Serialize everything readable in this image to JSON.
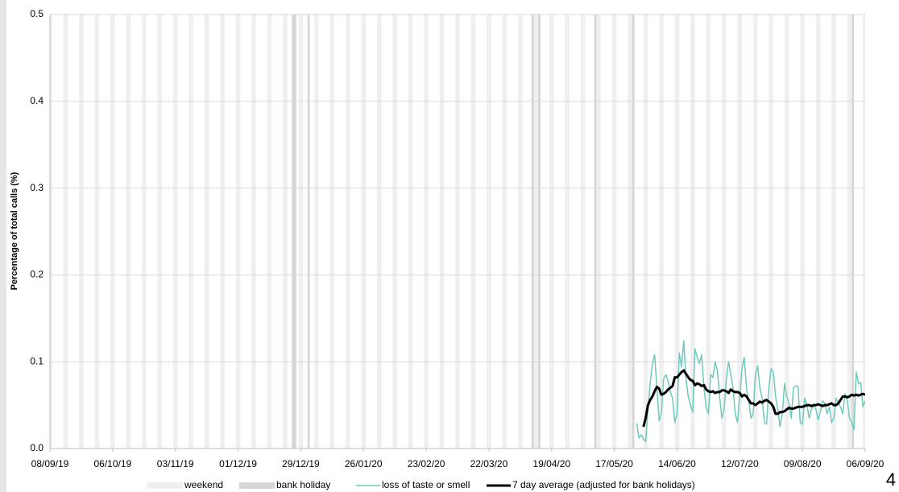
{
  "chart_data": {
    "type": "line",
    "ylabel": "Percentage of total calls (%)",
    "page_number": "4",
    "xlim": [
      "08/09/19",
      "06/09/20"
    ],
    "xticks": [
      "08/09/19",
      "06/10/19",
      "03/11/19",
      "01/12/19",
      "29/12/19",
      "26/01/20",
      "23/02/20",
      "22/03/20",
      "19/04/20",
      "17/05/20",
      "14/06/20",
      "12/07/20",
      "09/08/20",
      "06/09/20"
    ],
    "ylim": [
      0,
      0.5
    ],
    "yticks": [
      {
        "value": 0,
        "label": "0.0"
      },
      0.1,
      0.2,
      0.3,
      0.4,
      0.5
    ],
    "grid": true,
    "bands": [
      {
        "name": "weekend",
        "color": "#efefef",
        "dates": [
          "07/09/19",
          "08/09/19",
          "14/09/19",
          "15/09/19",
          "21/09/19",
          "22/09/19",
          "28/09/19",
          "29/09/19",
          "05/10/19",
          "06/10/19",
          "12/10/19",
          "13/10/19",
          "19/10/19",
          "20/10/19",
          "26/10/19",
          "27/10/19",
          "02/11/19",
          "03/11/19",
          "09/11/19",
          "10/11/19",
          "16/11/19",
          "17/11/19",
          "23/11/19",
          "24/11/19",
          "30/11/19",
          "01/12/19",
          "07/12/19",
          "08/12/19",
          "14/12/19",
          "15/12/19",
          "21/12/19",
          "22/12/19",
          "28/12/19",
          "29/12/19",
          "04/01/20",
          "05/01/20",
          "11/01/20",
          "12/01/20",
          "18/01/20",
          "19/01/20",
          "25/01/20",
          "26/01/20",
          "01/02/20",
          "02/02/20",
          "08/02/20",
          "09/02/20",
          "15/02/20",
          "16/02/20",
          "22/02/20",
          "23/02/20",
          "29/02/20",
          "01/03/20",
          "07/03/20",
          "08/03/20",
          "14/03/20",
          "15/03/20",
          "21/03/20",
          "22/03/20",
          "28/03/20",
          "29/03/20",
          "04/04/20",
          "05/04/20",
          "11/04/20",
          "12/04/20",
          "18/04/20",
          "19/04/20",
          "25/04/20",
          "26/04/20",
          "02/05/20",
          "03/05/20",
          "09/05/20",
          "10/05/20",
          "16/05/20",
          "17/05/20",
          "23/05/20",
          "24/05/20",
          "30/05/20",
          "31/05/20",
          "06/06/20",
          "07/06/20",
          "13/06/20",
          "14/06/20",
          "20/06/20",
          "21/06/20",
          "27/06/20",
          "28/06/20",
          "04/07/20",
          "05/07/20",
          "11/07/20",
          "12/07/20",
          "18/07/20",
          "19/07/20",
          "25/07/20",
          "26/07/20",
          "01/08/20",
          "02/08/20",
          "08/08/20",
          "09/08/20",
          "15/08/20",
          "16/08/20",
          "22/08/20",
          "23/08/20",
          "29/08/20",
          "30/08/20",
          "05/09/20",
          "06/09/20"
        ]
      },
      {
        "name": "bank holiday",
        "color": "#d6d6d6",
        "dates": [
          "25/12/19",
          "26/12/19",
          "01/01/20",
          "10/04/20",
          "13/04/20",
          "08/05/20",
          "25/05/20",
          "31/08/20"
        ]
      }
    ],
    "x": [
      "27/05/20",
      "28/05/20",
      "29/05/20",
      "30/05/20",
      "31/05/20",
      "01/06/20",
      "02/06/20",
      "03/06/20",
      "04/06/20",
      "05/06/20",
      "06/06/20",
      "07/06/20",
      "08/06/20",
      "09/06/20",
      "10/06/20",
      "11/06/20",
      "12/06/20",
      "13/06/20",
      "14/06/20",
      "15/06/20",
      "16/06/20",
      "17/06/20",
      "18/06/20",
      "19/06/20",
      "20/06/20",
      "21/06/20",
      "22/06/20",
      "23/06/20",
      "24/06/20",
      "25/06/20",
      "26/06/20",
      "27/06/20",
      "28/06/20",
      "29/06/20",
      "30/06/20",
      "01/07/20",
      "02/07/20",
      "03/07/20",
      "04/07/20",
      "05/07/20",
      "06/07/20",
      "07/07/20",
      "08/07/20",
      "09/07/20",
      "10/07/20",
      "11/07/20",
      "12/07/20",
      "13/07/20",
      "14/07/20",
      "15/07/20",
      "16/07/20",
      "17/07/20",
      "18/07/20",
      "19/07/20",
      "20/07/20",
      "21/07/20",
      "22/07/20",
      "23/07/20",
      "24/07/20",
      "25/07/20",
      "26/07/20",
      "27/07/20",
      "28/07/20",
      "29/07/20",
      "30/07/20",
      "31/07/20",
      "01/08/20",
      "02/08/20",
      "03/08/20",
      "04/08/20",
      "05/08/20",
      "06/08/20",
      "07/08/20",
      "08/08/20",
      "09/08/20",
      "10/08/20",
      "11/08/20",
      "12/08/20",
      "13/08/20",
      "14/08/20",
      "15/08/20",
      "16/08/20",
      "17/08/20",
      "18/08/20",
      "19/08/20",
      "20/08/20",
      "21/08/20",
      "22/08/20",
      "23/08/20",
      "24/08/20",
      "25/08/20",
      "26/08/20",
      "27/08/20",
      "28/08/20",
      "29/08/20",
      "30/08/20",
      "31/08/20",
      "01/09/20",
      "02/09/20",
      "03/09/20",
      "04/09/20",
      "05/09/20",
      "06/09/20"
    ],
    "series": [
      {
        "name": "loss of taste or smell",
        "color": "#70c9bd",
        "values": [
          0.029,
          0.012,
          0.016,
          0.011,
          0.008,
          0.045,
          0.075,
          0.098,
          0.108,
          0.07,
          0.032,
          0.04,
          0.08,
          0.085,
          0.078,
          0.065,
          0.058,
          0.03,
          0.04,
          0.11,
          0.094,
          0.124,
          0.08,
          0.06,
          0.05,
          0.042,
          0.115,
          0.105,
          0.098,
          0.108,
          0.07,
          0.048,
          0.04,
          0.085,
          0.082,
          0.1,
          0.09,
          0.06,
          0.035,
          0.045,
          0.08,
          0.1,
          0.085,
          0.07,
          0.04,
          0.03,
          0.06,
          0.092,
          0.105,
          0.07,
          0.055,
          0.035,
          0.04,
          0.085,
          0.095,
          0.07,
          0.058,
          0.03,
          0.028,
          0.07,
          0.092,
          0.088,
          0.06,
          0.045,
          0.025,
          0.04,
          0.075,
          0.06,
          0.052,
          0.035,
          0.07,
          0.072,
          0.072,
          0.03,
          0.028,
          0.058,
          0.05,
          0.035,
          0.045,
          0.05,
          0.045,
          0.033,
          0.042,
          0.055,
          0.052,
          0.04,
          0.048,
          0.03,
          0.035,
          0.058,
          0.052,
          0.048,
          0.04,
          0.063,
          0.055,
          0.035,
          0.03,
          0.022,
          0.088,
          0.075,
          0.076,
          0.048,
          0.055
        ]
      },
      {
        "name": "7 day average (adjusted for bank holidays)",
        "color": "#000000",
        "values": [
          null,
          null,
          null,
          0.025,
          0.035,
          0.05,
          0.056,
          0.06,
          0.066,
          0.071,
          0.069,
          0.062,
          0.063,
          0.065,
          0.068,
          0.07,
          0.072,
          0.082,
          0.082,
          0.085,
          0.088,
          0.09,
          0.086,
          0.082,
          0.079,
          0.078,
          0.073,
          0.075,
          0.074,
          0.072,
          0.073,
          0.068,
          0.066,
          0.065,
          0.066,
          0.064,
          0.065,
          0.065,
          0.067,
          0.067,
          0.066,
          0.064,
          0.068,
          0.066,
          0.065,
          0.065,
          0.064,
          0.06,
          0.062,
          0.06,
          0.056,
          0.052,
          0.052,
          0.05,
          0.052,
          0.054,
          0.053,
          0.055,
          0.056,
          0.054,
          0.052,
          0.048,
          0.04,
          0.04,
          0.042,
          0.042,
          0.043,
          0.045,
          0.047,
          0.046,
          0.046,
          0.047,
          0.048,
          0.048,
          0.048,
          0.049,
          0.05,
          0.05,
          0.049,
          0.05,
          0.05,
          0.051,
          0.05,
          0.049,
          0.05,
          0.05,
          0.051,
          0.052,
          0.05,
          0.05,
          0.052,
          0.056,
          0.06,
          0.06,
          0.059,
          0.06,
          0.062,
          0.061,
          0.062,
          0.061,
          0.062,
          0.063,
          0.062
        ]
      }
    ]
  }
}
